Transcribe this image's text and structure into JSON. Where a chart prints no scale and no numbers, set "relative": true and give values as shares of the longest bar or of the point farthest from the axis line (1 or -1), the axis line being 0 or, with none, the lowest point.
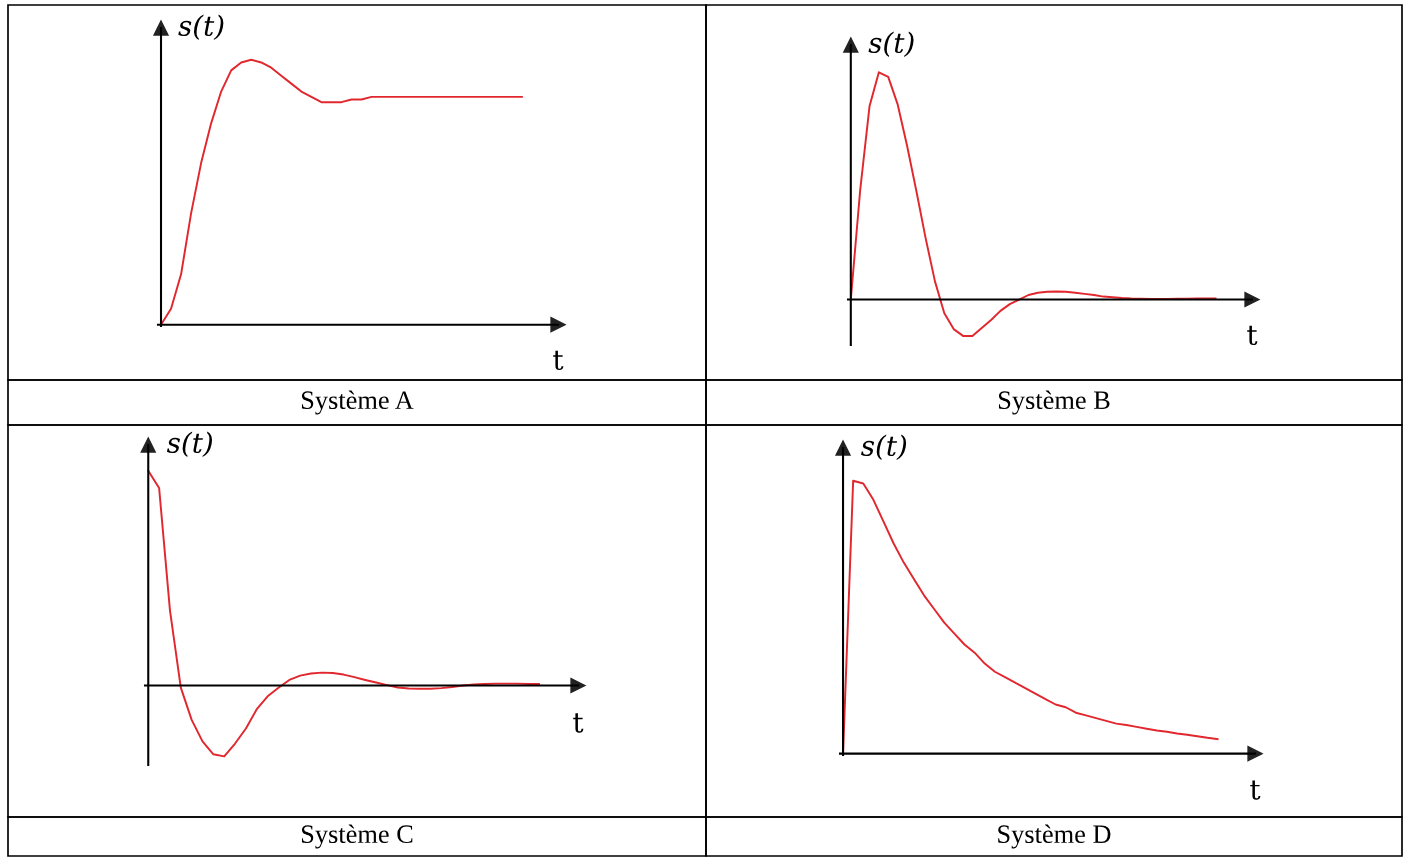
{
  "chart_data": [
    {
      "type": "line",
      "relative": true,
      "title": "Système A",
      "xlabel": "t",
      "ylabel": "s(t)",
      "color": "#e0282e",
      "categories": [
        null,
        null,
        null,
        null,
        null,
        null,
        null,
        null,
        null,
        null,
        null,
        null,
        null,
        null,
        null,
        null,
        null,
        null,
        null,
        null,
        null,
        null,
        null,
        null,
        null,
        null,
        null,
        null,
        null,
        null,
        null,
        null,
        null,
        null,
        null,
        null,
        null
      ],
      "values": [
        0,
        0.06,
        0.19,
        0.42,
        0.61,
        0.76,
        0.88,
        0.96,
        0.99,
        1.0,
        0.99,
        0.97,
        0.94,
        0.91,
        0.88,
        0.86,
        0.84,
        0.84,
        0.84,
        0.85,
        0.85,
        0.86,
        0.86,
        0.86,
        0.86,
        0.86,
        0.86,
        0.86,
        0.86,
        0.86,
        0.86,
        0.86,
        0.86,
        0.86,
        0.86,
        0.86,
        0.86
      ]
    },
    {
      "type": "line",
      "relative": true,
      "title": "Système B",
      "xlabel": "t",
      "ylabel": "s(t)",
      "color": "#e0282e",
      "categories": [
        null,
        null,
        null,
        null,
        null,
        null,
        null,
        null,
        null,
        null,
        null,
        null,
        null,
        null,
        null,
        null,
        null,
        null,
        null,
        null,
        null,
        null,
        null,
        null,
        null,
        null,
        null,
        null,
        null,
        null,
        null,
        null,
        null,
        null,
        null,
        null,
        null,
        null,
        null,
        null
      ],
      "values": [
        0,
        0.48,
        0.85,
        1.0,
        0.98,
        0.86,
        0.68,
        0.48,
        0.27,
        0.08,
        -0.06,
        -0.13,
        -0.16,
        -0.16,
        -0.125,
        -0.09,
        -0.05,
        -0.02,
        0,
        0.02,
        0.03,
        0.034,
        0.035,
        0.034,
        0.03,
        0.025,
        0.02,
        0.013,
        0.01,
        0.007,
        0.005,
        0.004,
        0.003,
        0.003,
        0.003,
        0.004,
        0.004,
        0.005,
        0.005,
        0.005
      ]
    },
    {
      "type": "line",
      "relative": true,
      "title": "Système C",
      "xlabel": "t",
      "ylabel": "s(t)",
      "color": "#e0282e",
      "categories": [
        null,
        null,
        null,
        null,
        null,
        null,
        null,
        null,
        null,
        null,
        null,
        null,
        null,
        null,
        null,
        null,
        null,
        null,
        null,
        null,
        null,
        null,
        null,
        null,
        null,
        null,
        null,
        null,
        null,
        null,
        null,
        null,
        null,
        null,
        null,
        null,
        null
      ],
      "values": [
        1.0,
        0.92,
        0.35,
        -0.01,
        -0.16,
        -0.26,
        -0.32,
        -0.33,
        -0.27,
        -0.2,
        -0.11,
        -0.05,
        -0.01,
        0.026,
        0.046,
        0.056,
        0.06,
        0.058,
        0.051,
        0.039,
        0.026,
        0.014,
        0.002,
        -0.009,
        -0.014,
        -0.015,
        -0.015,
        -0.012,
        -0.007,
        0,
        0.005,
        0.007,
        0.009,
        0.009,
        0.009,
        0.007,
        0.007
      ]
    },
    {
      "type": "line",
      "relative": true,
      "title": "Système D",
      "xlabel": "t",
      "ylabel": "s(t)",
      "color": "#e0282e",
      "categories": [
        null,
        null,
        null,
        null,
        null,
        null,
        null,
        null,
        null,
        null,
        null,
        null,
        null,
        null,
        null,
        null,
        null,
        null,
        null,
        null,
        null,
        null,
        null,
        null,
        null,
        null,
        null,
        null,
        null,
        null,
        null,
        null,
        null,
        null,
        null,
        null,
        null,
        null
      ],
      "values": [
        0,
        1.0,
        0.99,
        0.93,
        0.85,
        0.77,
        0.7,
        0.64,
        0.58,
        0.53,
        0.48,
        0.44,
        0.4,
        0.37,
        0.33,
        0.3,
        0.28,
        0.26,
        0.24,
        0.22,
        0.2,
        0.18,
        0.17,
        0.15,
        0.14,
        0.13,
        0.12,
        0.11,
        0.105,
        0.098,
        0.091,
        0.085,
        0.08,
        0.074,
        0.069,
        0.064,
        0.058,
        0.053
      ]
    }
  ]
}
